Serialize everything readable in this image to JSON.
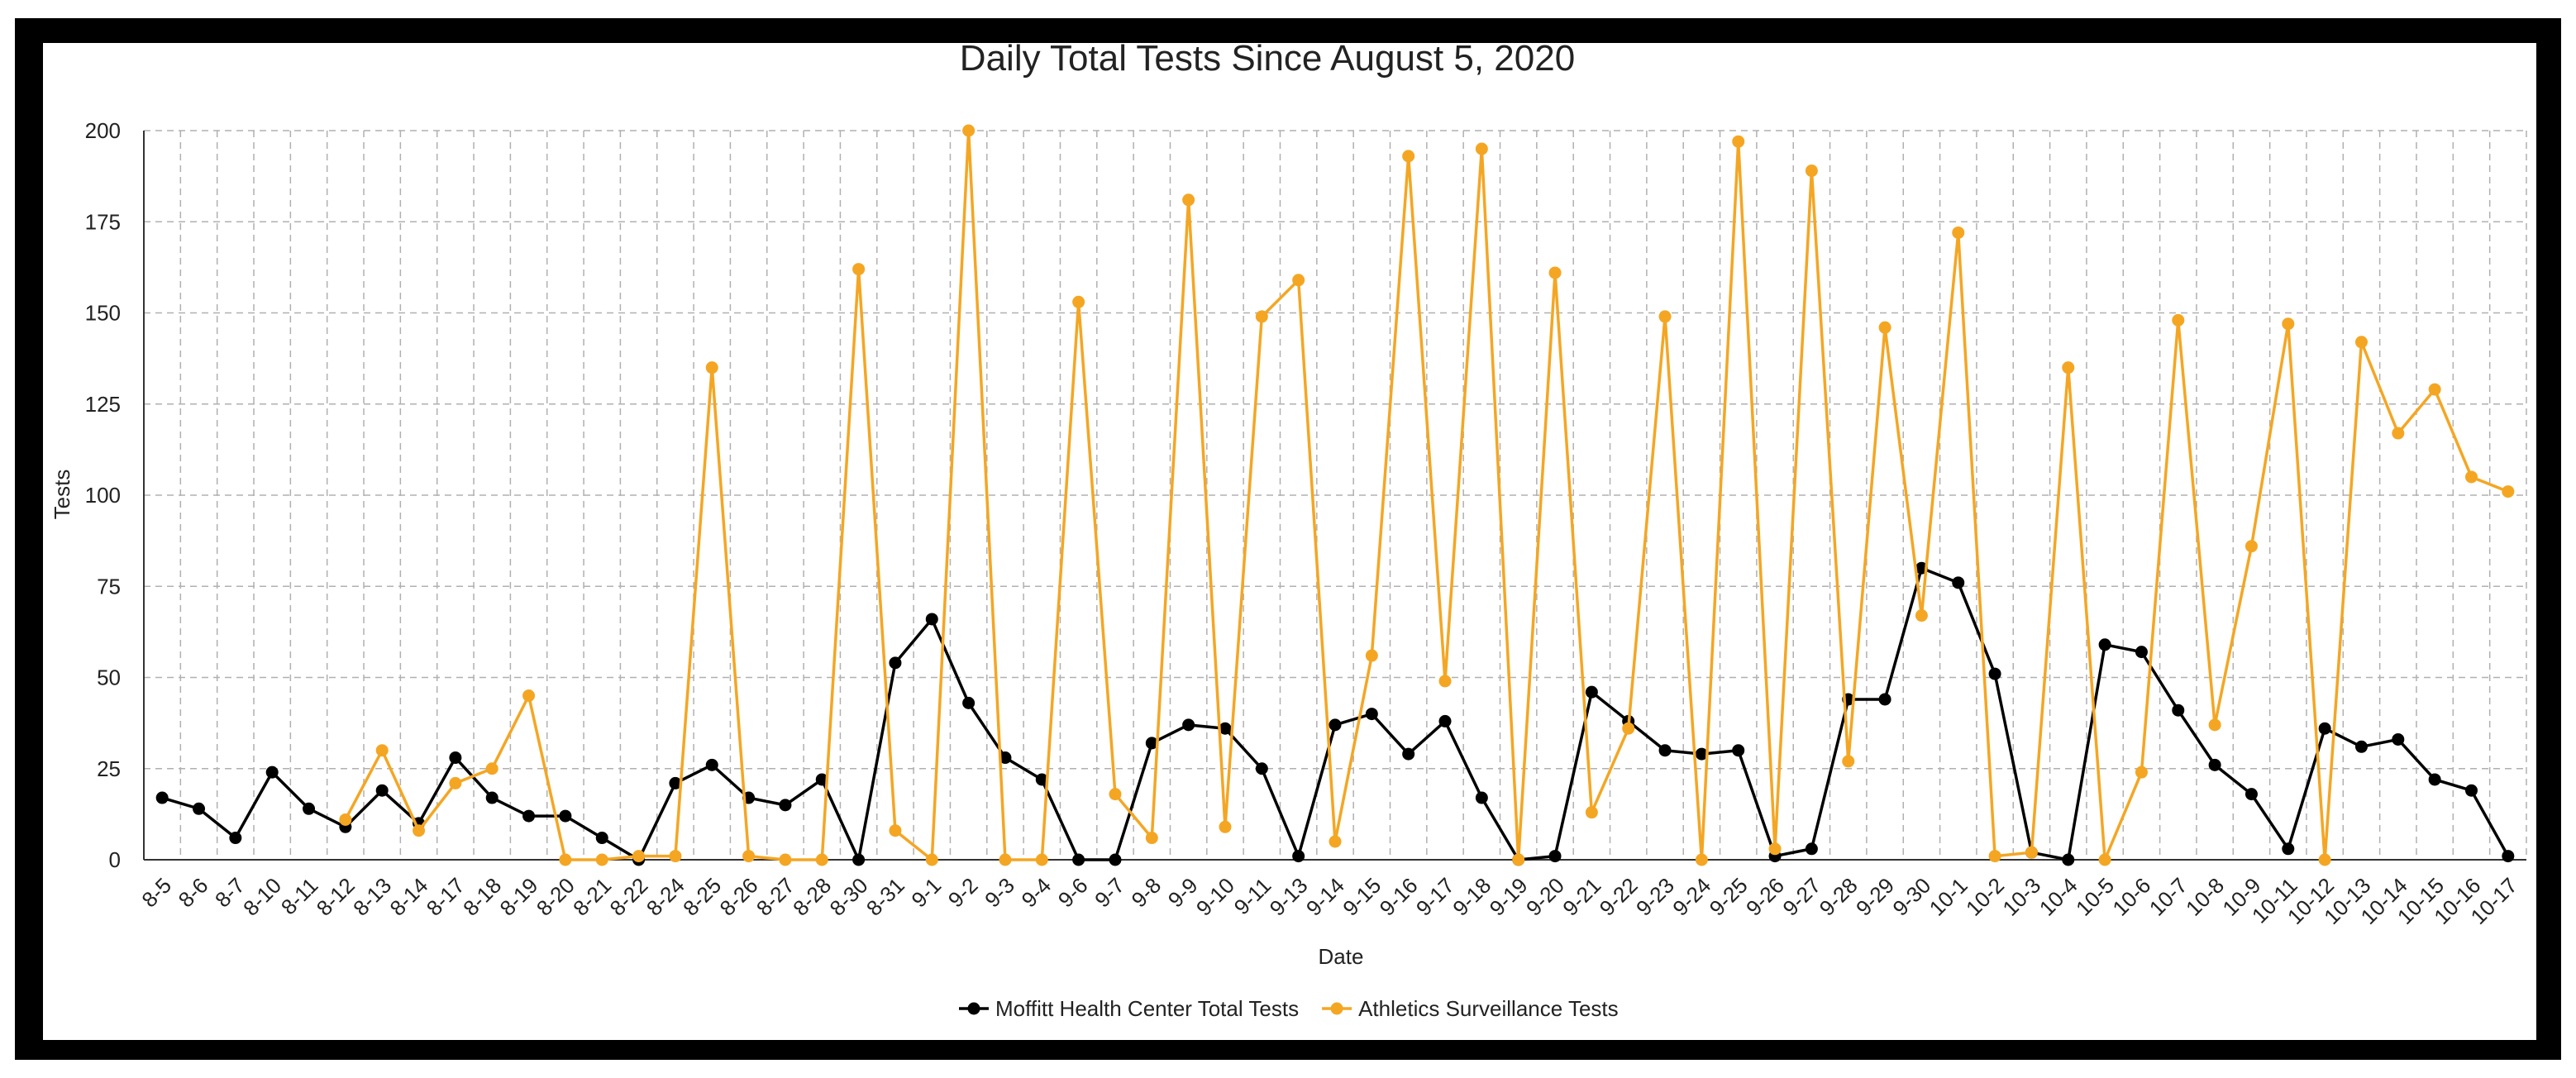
{
  "colors": {
    "frame": "#000000",
    "series1": "#000000",
    "series2": "#F4A623",
    "grid": "#b0b0b0"
  },
  "chart_data": {
    "type": "line",
    "title": "Daily Total Tests Since August 5, 2020",
    "xlabel": "Date",
    "ylabel": "Tests",
    "ylim": [
      0,
      200
    ],
    "yticks": [
      0,
      25,
      50,
      75,
      100,
      125,
      150,
      175,
      200
    ],
    "grid": true,
    "legend_position": "bottom",
    "categories": [
      "8-5",
      "8-6",
      "8-7",
      "8-10",
      "8-11",
      "8-12",
      "8-13",
      "8-14",
      "8-17",
      "8-18",
      "8-19",
      "8-20",
      "8-21",
      "8-22",
      "8-24",
      "8-25",
      "8-26",
      "8-27",
      "8-28",
      "8-30",
      "8-31",
      "9-1",
      "9-2",
      "9-3",
      "9-4",
      "9-6",
      "9-7",
      "9-8",
      "9-9",
      "9-10",
      "9-11",
      "9-13",
      "9-14",
      "9-15",
      "9-16",
      "9-17",
      "9-18",
      "9-19",
      "9-20",
      "9-21",
      "9-22",
      "9-23",
      "9-24",
      "9-25",
      "9-26",
      "9-27",
      "9-28",
      "9-29",
      "9-30",
      "10-1",
      "10-2",
      "10-3",
      "10-4",
      "10-5",
      "10-6",
      "10-7",
      "10-8",
      "10-9",
      "10-11",
      "10-12",
      "10-13",
      "10-14",
      "10-15",
      "10-16",
      "10-17"
    ],
    "series": [
      {
        "name": "Moffitt Health Center Total Tests",
        "values": [
          17,
          14,
          6,
          24,
          14,
          9,
          19,
          10,
          28,
          17,
          12,
          12,
          6,
          0,
          21,
          26,
          17,
          15,
          22,
          0,
          54,
          66,
          43,
          28,
          22,
          0,
          0,
          32,
          37,
          36,
          25,
          1,
          37,
          40,
          29,
          38,
          17,
          0,
          1,
          46,
          38,
          30,
          29,
          30,
          1,
          3,
          44,
          44,
          80,
          76,
          51,
          2,
          0,
          59,
          57,
          41,
          26,
          18,
          3,
          36,
          31,
          33,
          22,
          19,
          1
        ]
      },
      {
        "name": "Athletics Surveillance Tests",
        "values": [
          null,
          null,
          null,
          null,
          null,
          11,
          30,
          8,
          21,
          25,
          45,
          0,
          0,
          1,
          1,
          135,
          1,
          0,
          0,
          162,
          8,
          0,
          200,
          0,
          0,
          153,
          18,
          6,
          181,
          9,
          149,
          159,
          5,
          56,
          193,
          49,
          195,
          0,
          161,
          13,
          36,
          149,
          0,
          197,
          3,
          189,
          27,
          146,
          67,
          172,
          1,
          2,
          135,
          0,
          24,
          148,
          37,
          86,
          147,
          0,
          142,
          117,
          129,
          105,
          101
        ]
      }
    ]
  }
}
